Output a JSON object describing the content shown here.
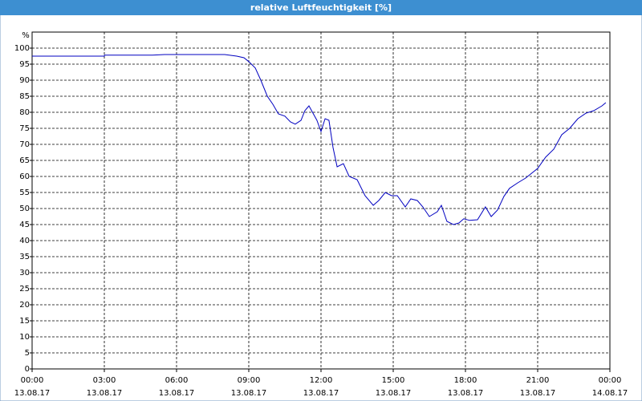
{
  "chart_data": {
    "type": "line",
    "title": "relative Luftfeuchtigkeit [%]",
    "ylabel": "%",
    "xlim": [
      0,
      24
    ],
    "ylim": [
      0,
      105
    ],
    "xticks": [
      {
        "value": 0,
        "label": "00:00",
        "date": "13.08.17"
      },
      {
        "value": 3,
        "label": "03:00",
        "date": "13.08.17"
      },
      {
        "value": 6,
        "label": "06:00",
        "date": "13.08.17"
      },
      {
        "value": 9,
        "label": "09:00",
        "date": "13.08.17"
      },
      {
        "value": 12,
        "label": "12:00",
        "date": "13.08.17"
      },
      {
        "value": 15,
        "label": "15:00",
        "date": "13.08.17"
      },
      {
        "value": 18,
        "label": "18:00",
        "date": "13.08.17"
      },
      {
        "value": 21,
        "label": "21:00",
        "date": "13.08.17"
      },
      {
        "value": 24,
        "label": "00:00",
        "date": "14.08.17"
      }
    ],
    "yticks": [
      0,
      5,
      10,
      15,
      20,
      25,
      30,
      35,
      40,
      45,
      50,
      55,
      60,
      65,
      70,
      75,
      80,
      85,
      90,
      95,
      100
    ],
    "grid": true,
    "x": [
      0,
      3,
      3.01,
      5,
      5.5,
      8,
      8.5,
      8.8,
      9.0,
      9.27,
      9.5,
      9.77,
      10.0,
      10.23,
      10.5,
      10.73,
      10.93,
      11.17,
      11.33,
      11.5,
      11.83,
      12.0,
      12.17,
      12.33,
      12.5,
      12.67,
      12.93,
      13.17,
      13.5,
      13.83,
      14.17,
      14.4,
      14.67,
      14.93,
      15.17,
      15.5,
      15.73,
      16.0,
      16.23,
      16.5,
      16.83,
      17.0,
      17.23,
      17.5,
      17.73,
      17.93,
      18.17,
      18.5,
      18.83,
      19.07,
      19.33,
      19.6,
      19.83,
      20.17,
      20.5,
      21.0,
      21.33,
      21.67,
      22.0,
      22.33,
      22.67,
      23.0,
      23.33,
      23.67,
      23.83
    ],
    "series": [
      {
        "name": "relative Luftfeuchtigkeit",
        "color": "#0000c0",
        "values": [
          97.5,
          97.5,
          97.8,
          97.8,
          98,
          98,
          97.5,
          97,
          95.8,
          93.8,
          90,
          85,
          82.5,
          79.5,
          78.8,
          77,
          76.3,
          77.5,
          80.5,
          82,
          77.5,
          74,
          78,
          77.5,
          69,
          63,
          64,
          60,
          59,
          54,
          51,
          52.5,
          55,
          54,
          54,
          50.5,
          53,
          52.5,
          50.5,
          47.5,
          49,
          51,
          46,
          45,
          45.5,
          46.8,
          46.3,
          46.5,
          50.5,
          47.5,
          49.5,
          53.8,
          56.3,
          58,
          59.5,
          62.5,
          66,
          68.5,
          73,
          75,
          78,
          79.7,
          80.5,
          82,
          83
        ]
      }
    ]
  }
}
